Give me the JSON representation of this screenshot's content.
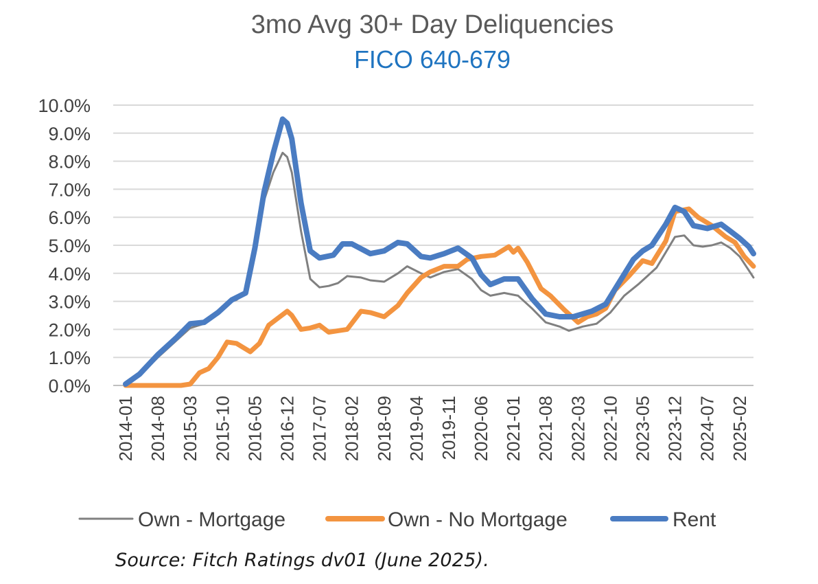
{
  "title": "3mo Avg 30+ Day Deliquencies",
  "subtitle": "FICO 640-679",
  "source": "Source: Fitch Ratings dv01 (June 2025).",
  "colors": {
    "own_mortgage": "#808080",
    "own_no_mortgage": "#f39440",
    "rent": "#4a7cc2",
    "grid": "#d9d9d9"
  },
  "chart_data": {
    "type": "line",
    "title": "3mo Avg 30+ Day Deliquencies",
    "subtitle": "FICO 640-679",
    "xlabel": "",
    "ylabel": "",
    "ylim": [
      0,
      10
    ],
    "y_unit": "%",
    "y_ticks": [
      "0.0%",
      "1.0%",
      "2.0%",
      "3.0%",
      "4.0%",
      "5.0%",
      "6.0%",
      "7.0%",
      "8.0%",
      "9.0%",
      "10.0%"
    ],
    "x_ticks": [
      "2014-01",
      "2014-08",
      "2015-03",
      "2015-10",
      "2016-05",
      "2016-12",
      "2017-07",
      "2018-02",
      "2018-09",
      "2019-04",
      "2019-11",
      "2020-06",
      "2021-01",
      "2021-08",
      "2022-03",
      "2022-10",
      "2023-05",
      "2023-12",
      "2024-07",
      "2025-02"
    ],
    "x_range": [
      "2014-01",
      "2025-05"
    ],
    "grid": "horizontal",
    "legend_position": "bottom",
    "series": [
      {
        "name": "Own - Mortgage",
        "points": [
          [
            "2014-01",
            0.05
          ],
          [
            "2014-04",
            0.35
          ],
          [
            "2014-08",
            1.0
          ],
          [
            "2014-12",
            1.6
          ],
          [
            "2015-03",
            2.05
          ],
          [
            "2015-06",
            2.2
          ],
          [
            "2015-09",
            2.6
          ],
          [
            "2015-11",
            2.95
          ],
          [
            "2016-01",
            3.05
          ],
          [
            "2016-03",
            3.3
          ],
          [
            "2016-05",
            4.8
          ],
          [
            "2016-07",
            6.6
          ],
          [
            "2016-09",
            7.6
          ],
          [
            "2016-11",
            8.3
          ],
          [
            "2016-12",
            8.15
          ],
          [
            "2017-01",
            7.6
          ],
          [
            "2017-03",
            5.5
          ],
          [
            "2017-05",
            3.8
          ],
          [
            "2017-07",
            3.5
          ],
          [
            "2017-09",
            3.55
          ],
          [
            "2017-11",
            3.65
          ],
          [
            "2018-01",
            3.9
          ],
          [
            "2018-04",
            3.85
          ],
          [
            "2018-06",
            3.75
          ],
          [
            "2018-09",
            3.7
          ],
          [
            "2018-12",
            4.0
          ],
          [
            "2019-02",
            4.25
          ],
          [
            "2019-05",
            4.0
          ],
          [
            "2019-07",
            3.85
          ],
          [
            "2019-10",
            4.05
          ],
          [
            "2020-01",
            4.15
          ],
          [
            "2020-04",
            3.8
          ],
          [
            "2020-06",
            3.4
          ],
          [
            "2020-08",
            3.2
          ],
          [
            "2020-11",
            3.3
          ],
          [
            "2021-02",
            3.2
          ],
          [
            "2021-05",
            2.75
          ],
          [
            "2021-08",
            2.25
          ],
          [
            "2021-11",
            2.1
          ],
          [
            "2022-01",
            1.95
          ],
          [
            "2022-04",
            2.1
          ],
          [
            "2022-07",
            2.2
          ],
          [
            "2022-10",
            2.6
          ],
          [
            "2023-01",
            3.2
          ],
          [
            "2023-04",
            3.6
          ],
          [
            "2023-06",
            3.9
          ],
          [
            "2023-08",
            4.2
          ],
          [
            "2023-10",
            4.75
          ],
          [
            "2023-12",
            5.3
          ],
          [
            "2024-02",
            5.35
          ],
          [
            "2024-04",
            5.0
          ],
          [
            "2024-06",
            4.95
          ],
          [
            "2024-08",
            5.0
          ],
          [
            "2024-10",
            5.1
          ],
          [
            "2024-12",
            4.9
          ],
          [
            "2025-02",
            4.6
          ],
          [
            "2025-04",
            4.1
          ],
          [
            "2025-05",
            3.85
          ]
        ]
      },
      {
        "name": "Own - No Mortgage",
        "points": [
          [
            "2014-01",
            0.0
          ],
          [
            "2014-06",
            0.0
          ],
          [
            "2015-01",
            0.0
          ],
          [
            "2015-03",
            0.05
          ],
          [
            "2015-05",
            0.45
          ],
          [
            "2015-07",
            0.6
          ],
          [
            "2015-09",
            1.0
          ],
          [
            "2015-11",
            1.55
          ],
          [
            "2016-01",
            1.5
          ],
          [
            "2016-04",
            1.2
          ],
          [
            "2016-06",
            1.5
          ],
          [
            "2016-08",
            2.15
          ],
          [
            "2016-10",
            2.4
          ],
          [
            "2016-12",
            2.65
          ],
          [
            "2017-01",
            2.5
          ],
          [
            "2017-03",
            2.0
          ],
          [
            "2017-05",
            2.05
          ],
          [
            "2017-07",
            2.15
          ],
          [
            "2017-09",
            1.9
          ],
          [
            "2017-11",
            1.95
          ],
          [
            "2018-01",
            2.0
          ],
          [
            "2018-04",
            2.65
          ],
          [
            "2018-06",
            2.6
          ],
          [
            "2018-09",
            2.45
          ],
          [
            "2018-12",
            2.85
          ],
          [
            "2019-02",
            3.3
          ],
          [
            "2019-05",
            3.85
          ],
          [
            "2019-07",
            4.05
          ],
          [
            "2019-10",
            4.25
          ],
          [
            "2020-01",
            4.25
          ],
          [
            "2020-03",
            4.5
          ],
          [
            "2020-06",
            4.6
          ],
          [
            "2020-09",
            4.65
          ],
          [
            "2020-12",
            4.95
          ],
          [
            "2021-01",
            4.75
          ],
          [
            "2021-02",
            4.9
          ],
          [
            "2021-04",
            4.4
          ],
          [
            "2021-07",
            3.45
          ],
          [
            "2021-09",
            3.2
          ],
          [
            "2021-12",
            2.7
          ],
          [
            "2022-03",
            2.25
          ],
          [
            "2022-05",
            2.45
          ],
          [
            "2022-07",
            2.55
          ],
          [
            "2022-09",
            2.75
          ],
          [
            "2022-11",
            3.4
          ],
          [
            "2023-02",
            3.9
          ],
          [
            "2023-05",
            4.45
          ],
          [
            "2023-07",
            4.35
          ],
          [
            "2023-10",
            5.15
          ],
          [
            "2023-12",
            6.2
          ],
          [
            "2024-03",
            6.3
          ],
          [
            "2024-05",
            6.0
          ],
          [
            "2024-08",
            5.7
          ],
          [
            "2024-11",
            5.3
          ],
          [
            "2025-01",
            5.1
          ],
          [
            "2025-03",
            4.6
          ],
          [
            "2025-05",
            4.25
          ]
        ]
      },
      {
        "name": "Rent",
        "points": [
          [
            "2014-01",
            0.05
          ],
          [
            "2014-04",
            0.4
          ],
          [
            "2014-08",
            1.1
          ],
          [
            "2014-12",
            1.7
          ],
          [
            "2015-03",
            2.2
          ],
          [
            "2015-06",
            2.25
          ],
          [
            "2015-09",
            2.6
          ],
          [
            "2015-12",
            3.05
          ],
          [
            "2016-03",
            3.3
          ],
          [
            "2016-05",
            4.9
          ],
          [
            "2016-07",
            6.9
          ],
          [
            "2016-09",
            8.3
          ],
          [
            "2016-11",
            9.5
          ],
          [
            "2016-12",
            9.35
          ],
          [
            "2017-01",
            8.8
          ],
          [
            "2017-03",
            6.5
          ],
          [
            "2017-05",
            4.8
          ],
          [
            "2017-07",
            4.55
          ],
          [
            "2017-10",
            4.65
          ],
          [
            "2017-12",
            5.05
          ],
          [
            "2018-02",
            5.05
          ],
          [
            "2018-06",
            4.7
          ],
          [
            "2018-09",
            4.8
          ],
          [
            "2018-12",
            5.1
          ],
          [
            "2019-02",
            5.05
          ],
          [
            "2019-05",
            4.6
          ],
          [
            "2019-07",
            4.55
          ],
          [
            "2019-10",
            4.7
          ],
          [
            "2020-01",
            4.9
          ],
          [
            "2020-04",
            4.55
          ],
          [
            "2020-06",
            3.95
          ],
          [
            "2020-08",
            3.6
          ],
          [
            "2020-11",
            3.8
          ],
          [
            "2021-02",
            3.8
          ],
          [
            "2021-05",
            3.1
          ],
          [
            "2021-08",
            2.55
          ],
          [
            "2021-11",
            2.45
          ],
          [
            "2022-02",
            2.45
          ],
          [
            "2022-06",
            2.65
          ],
          [
            "2022-09",
            2.9
          ],
          [
            "2022-12",
            3.7
          ],
          [
            "2023-03",
            4.5
          ],
          [
            "2023-05",
            4.8
          ],
          [
            "2023-07",
            5.0
          ],
          [
            "2023-10",
            5.75
          ],
          [
            "2023-12",
            6.35
          ],
          [
            "2024-02",
            6.2
          ],
          [
            "2024-04",
            5.7
          ],
          [
            "2024-07",
            5.6
          ],
          [
            "2024-10",
            5.75
          ],
          [
            "2024-12",
            5.5
          ],
          [
            "2025-02",
            5.25
          ],
          [
            "2025-04",
            4.95
          ],
          [
            "2025-05",
            4.7
          ]
        ]
      }
    ]
  }
}
